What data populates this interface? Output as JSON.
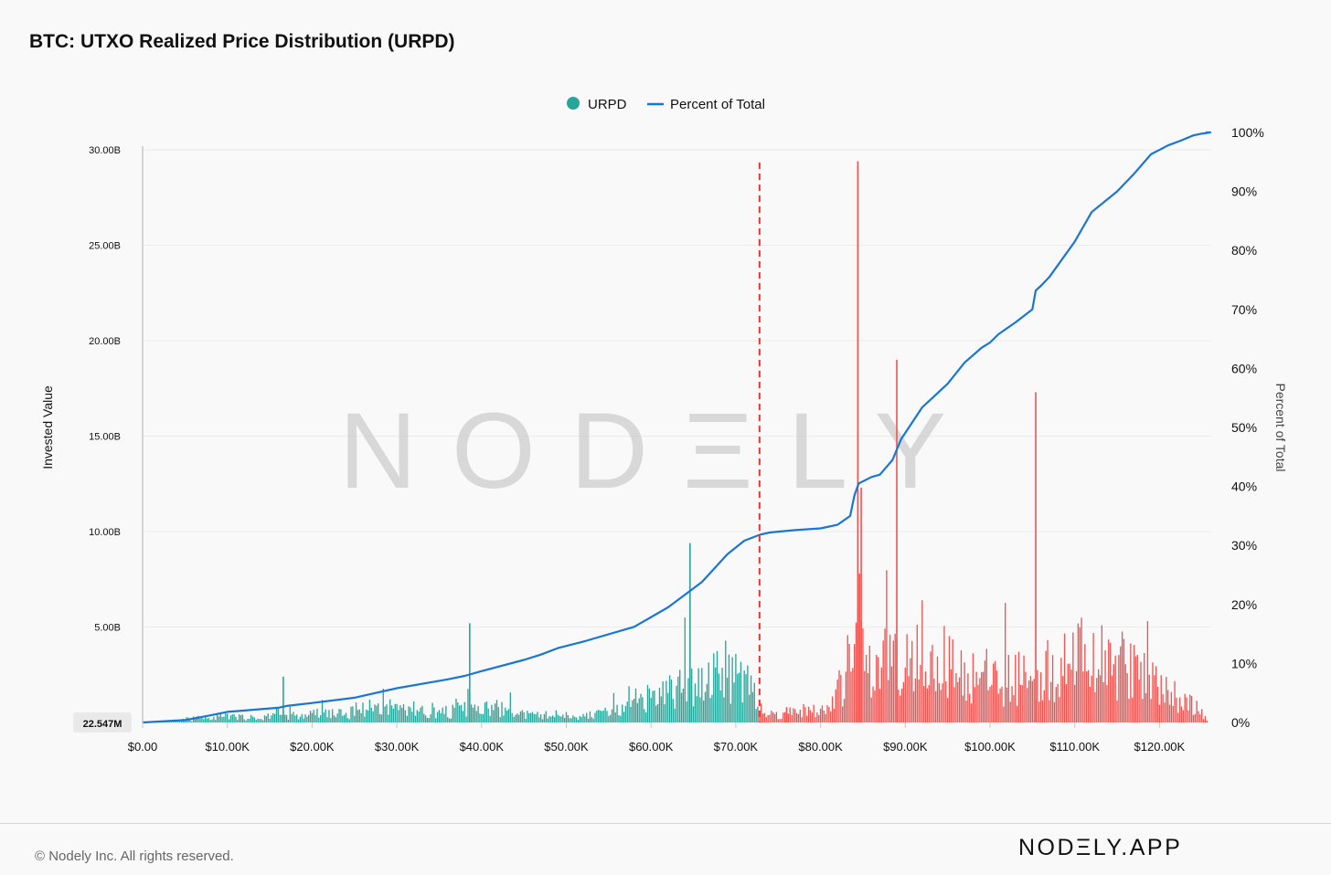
{
  "title": "BTC: UTXO Realized Price Distribution (URPD)",
  "footer": {
    "copyright": "© Nodely Inc. All rights reserved.",
    "brand": "NODΞLY.APP"
  },
  "watermark": "NODΞLY",
  "chart_data": {
    "type": "bar",
    "title": "BTC: UTXO Realized Price Distribution (URPD)",
    "xlabel": "",
    "ylabel": "Invested Value",
    "y2label": "Percent of Total",
    "xlim": [
      0,
      126000
    ],
    "ylim": [
      0,
      30000000000
    ],
    "y2lim": [
      0,
      100
    ],
    "x_ticks": [
      {
        "value": 0,
        "label": "$0.00"
      },
      {
        "value": 10000,
        "label": "$10.00K"
      },
      {
        "value": 20000,
        "label": "$20.00K"
      },
      {
        "value": 30000,
        "label": "$30.00K"
      },
      {
        "value": 40000,
        "label": "$40.00K"
      },
      {
        "value": 50000,
        "label": "$50.00K"
      },
      {
        "value": 60000,
        "label": "$60.00K"
      },
      {
        "value": 70000,
        "label": "$70.00K"
      },
      {
        "value": 80000,
        "label": "$80.00K"
      },
      {
        "value": 90000,
        "label": "$90.00K"
      },
      {
        "value": 100000,
        "label": "$100.00K"
      },
      {
        "value": 110000,
        "label": "$110.00K"
      },
      {
        "value": 120000,
        "label": "$120.00K"
      }
    ],
    "y_ticks": [
      {
        "value": 5000000000,
        "label": "5.00B"
      },
      {
        "value": 10000000000,
        "label": "10.00B"
      },
      {
        "value": 15000000000,
        "label": "15.00B"
      },
      {
        "value": 20000000000,
        "label": "20.00B"
      },
      {
        "value": 25000000000,
        "label": "25.00B"
      },
      {
        "value": 30000000000,
        "label": "30.00B"
      }
    ],
    "y2_ticks": [
      {
        "value": 0,
        "label": "0%"
      },
      {
        "value": 10,
        "label": "10%"
      },
      {
        "value": 20,
        "label": "20%"
      },
      {
        "value": 30,
        "label": "30%"
      },
      {
        "value": 40,
        "label": "40%"
      },
      {
        "value": 50,
        "label": "50%"
      },
      {
        "value": 60,
        "label": "60%"
      },
      {
        "value": 70,
        "label": "70%"
      },
      {
        "value": 80,
        "label": "80%"
      },
      {
        "value": 90,
        "label": "90%"
      },
      {
        "value": 100,
        "label": "100%"
      }
    ],
    "ymin_marker": {
      "value": 22547000,
      "label": "22.547M"
    },
    "current_price": 72800,
    "legend": {
      "position": "top-center",
      "items": [
        {
          "name": "URPD",
          "marker": "circle"
        },
        {
          "name": "Percent of Total",
          "marker": "line"
        }
      ]
    },
    "colors": {
      "below": "#26a69a",
      "above": "#ef5350",
      "line": "#1976d2",
      "marker": "#e53935"
    },
    "bucket_width": 200,
    "shape": [
      [
        0,
        0.03
      ],
      [
        2000,
        0.05
      ],
      [
        4000,
        0.06
      ],
      [
        6000,
        0.2
      ],
      [
        8000,
        0.28
      ],
      [
        10000,
        0.3
      ],
      [
        12000,
        0.28
      ],
      [
        14000,
        0.18
      ],
      [
        16000,
        0.6
      ],
      [
        18000,
        0.25
      ],
      [
        20000,
        0.45
      ],
      [
        22000,
        0.5
      ],
      [
        24000,
        0.4
      ],
      [
        26000,
        0.75
      ],
      [
        28000,
        0.85
      ],
      [
        30000,
        0.8
      ],
      [
        32000,
        0.7
      ],
      [
        34000,
        0.5
      ],
      [
        36000,
        0.55
      ],
      [
        38000,
        0.7
      ],
      [
        40000,
        0.65
      ],
      [
        42000,
        0.75
      ],
      [
        44000,
        0.5
      ],
      [
        46000,
        0.35
      ],
      [
        48000,
        0.4
      ],
      [
        50000,
        0.4
      ],
      [
        52000,
        0.3
      ],
      [
        54000,
        0.5
      ],
      [
        56000,
        0.6
      ],
      [
        58000,
        0.8
      ],
      [
        60000,
        1.3
      ],
      [
        62000,
        1.6
      ],
      [
        64000,
        2.0
      ],
      [
        66000,
        2.3
      ],
      [
        68000,
        2.6
      ],
      [
        70000,
        2.8
      ],
      [
        72000,
        2.2
      ],
      [
        72800,
        0.4
      ],
      [
        74000,
        0.35
      ],
      [
        76000,
        0.5
      ],
      [
        78000,
        0.7
      ],
      [
        80000,
        0.5
      ],
      [
        81000,
        0.7
      ],
      [
        82000,
        1.6
      ],
      [
        83000,
        2.2
      ],
      [
        84000,
        5.2
      ],
      [
        85000,
        3.0
      ],
      [
        86000,
        2.4
      ],
      [
        87000,
        3.1
      ],
      [
        88000,
        3.6
      ],
      [
        89000,
        3.4
      ],
      [
        90000,
        4.0
      ],
      [
        92000,
        3.6
      ],
      [
        94000,
        3.2
      ],
      [
        96000,
        2.8
      ],
      [
        98000,
        2.5
      ],
      [
        100000,
        2.3
      ],
      [
        102000,
        2.4
      ],
      [
        104000,
        2.4
      ],
      [
        106000,
        2.6
      ],
      [
        108000,
        3.0
      ],
      [
        110000,
        3.4
      ],
      [
        112000,
        3.3
      ],
      [
        114000,
        3.0
      ],
      [
        116000,
        2.9
      ],
      [
        118000,
        2.5
      ],
      [
        120000,
        1.8
      ],
      [
        122000,
        1.4
      ],
      [
        124000,
        0.9
      ],
      [
        125600,
        0.2
      ]
    ],
    "spikes": [
      {
        "x": 16600,
        "value": 2.4
      },
      {
        "x": 38600,
        "value": 5.2
      },
      {
        "x": 64600,
        "value": 9.4
      },
      {
        "x": 76000,
        "value": 0.8
      },
      {
        "x": 84400,
        "value": 29.4
      },
      {
        "x": 84600,
        "value": 7.8
      },
      {
        "x": 84800,
        "value": 12.3
      },
      {
        "x": 89000,
        "value": 19.0
      },
      {
        "x": 105400,
        "value": 17.3
      }
    ],
    "cumulative": {
      "x": [
        0,
        5000,
        8000,
        10000,
        16000,
        17000,
        20000,
        25000,
        30000,
        36000,
        38000,
        40000,
        45000,
        47000,
        49000,
        52000,
        58000,
        62000,
        66000,
        69000,
        71000,
        72800,
        74000,
        77000,
        80000,
        82000,
        83500,
        84000,
        84500,
        86000,
        87000,
        88500,
        89500,
        92000,
        95000,
        97000,
        99000,
        100000,
        101000,
        103000,
        105000,
        105400,
        106000,
        107000,
        110000,
        112000,
        115000,
        117000,
        119000,
        121000,
        122500,
        124000,
        125000,
        126000
      ],
      "y": [
        0,
        0.4,
        1.2,
        1.8,
        2.5,
        2.8,
        3.3,
        4.2,
        5.8,
        7.3,
        7.9,
        8.7,
        10.6,
        11.5,
        12.6,
        13.7,
        16.2,
        19.5,
        23.8,
        28.5,
        30.8,
        31.8,
        32.2,
        32.6,
        32.9,
        33.5,
        35.0,
        38.5,
        40.5,
        41.6,
        42.0,
        44.5,
        48.0,
        53.4,
        57.4,
        61.0,
        63.5,
        64.4,
        65.8,
        67.8,
        70.0,
        73.2,
        74.0,
        75.5,
        81.5,
        86.5,
        90.0,
        93.0,
        96.3,
        97.8,
        98.6,
        99.5,
        99.8,
        100.0
      ]
    }
  }
}
